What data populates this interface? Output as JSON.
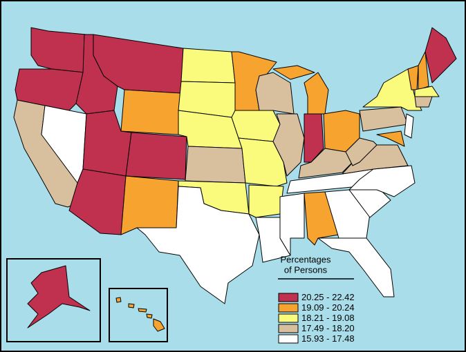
{
  "legend": {
    "title": [
      "Percentages",
      "of Persons"
    ],
    "entries": [
      {
        "label": "20.25 - 22.42",
        "color": "#c0304f"
      },
      {
        "label": "19.09 - 20.24",
        "color": "#f7a32f"
      },
      {
        "label": "18.21 - 19.08",
        "color": "#fafa7c"
      },
      {
        "label": "17.49 - 18.20",
        "color": "#d8c09f"
      },
      {
        "label": "15.93 - 17.48",
        "color": "#ffffff"
      }
    ]
  }
}
